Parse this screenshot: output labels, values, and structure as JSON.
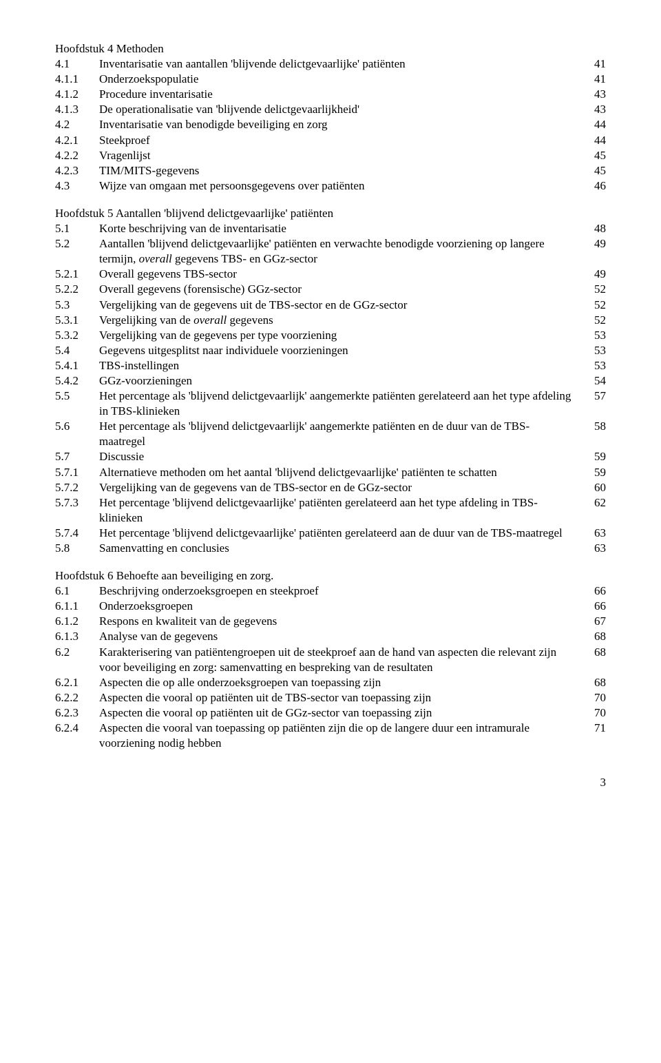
{
  "chapter4": {
    "title": "Hoofdstuk 4 Methoden",
    "entries": [
      {
        "n": "4.1",
        "t": "Inventarisatie van aantallen 'blijvende delictgevaarlijke' patiënten",
        "p": "41"
      },
      {
        "n": "4.1.1",
        "t": "Onderzoekspopulatie",
        "p": "41"
      },
      {
        "n": "4.1.2",
        "t": "Procedure inventarisatie",
        "p": "43"
      },
      {
        "n": "4.1.3",
        "t": "De operationalisatie van 'blijvende delictgevaarlijkheid'",
        "p": "43"
      },
      {
        "n": "4.2",
        "t": "Inventarisatie van benodigde beveiliging en zorg",
        "p": "44"
      },
      {
        "n": "4.2.1",
        "t": "Steekproef",
        "p": "44"
      },
      {
        "n": "4.2.2",
        "t": "Vragenlijst",
        "p": "45"
      },
      {
        "n": "4.2.3",
        "t": "TIM/MITS-gegevens",
        "p": "45"
      },
      {
        "n": "4.3",
        "t": "Wijze van omgaan met persoonsgegevens over patiënten",
        "p": "46"
      }
    ]
  },
  "chapter5": {
    "title": "Hoofdstuk 5 Aantallen 'blijvend delictgevaarlijke' patiënten",
    "e51": {
      "n": "5.1",
      "t": "Korte beschrijving van de inventarisatie",
      "p": "48"
    },
    "e52": {
      "n": "5.2",
      "t_a": "Aantallen 'blijvend delictgevaarlijke' patiënten en verwachte benodigde voorziening op langere termijn, ",
      "t_i": "overall",
      "t_b": " gegevens TBS- en GGz-sector",
      "p": "49"
    },
    "e521": {
      "n": "5.2.1",
      "t": "Overall gegevens TBS-sector",
      "p": "49"
    },
    "e522": {
      "n": "5.2.2",
      "t": "Overall gegevens (forensische) GGz-sector",
      "p": "52"
    },
    "e53": {
      "n": "5.3",
      "t": "Vergelijking van de gegevens uit de TBS-sector en de GGz-sector",
      "p": "52"
    },
    "e531": {
      "n": "5.3.1",
      "t_a": "Vergelijking van de ",
      "t_i": "overall",
      "t_b": " gegevens",
      "p": "52"
    },
    "e532": {
      "n": "5.3.2",
      "t": "Vergelijking van de gegevens per type voorziening",
      "p": "53"
    },
    "e54": {
      "n": "5.4",
      "t": "Gegevens uitgesplitst naar individuele voorzieningen",
      "p": "53"
    },
    "e541": {
      "n": "5.4.1",
      "t": "TBS-instellingen",
      "p": "53"
    },
    "e542": {
      "n": "5.4.2",
      "t": "GGz-voorzieningen",
      "p": "54"
    },
    "e55": {
      "n": "5.5",
      "t": "Het percentage als 'blijvend delictgevaarlijk' aangemerkte patiënten gerelateerd aan het type afdeling in TBS-klinieken",
      "p": "57"
    },
    "e56": {
      "n": "5.6",
      "t": "Het percentage als 'blijvend delictgevaarlijk' aangemerkte patiënten en de duur van de TBS-maatregel",
      "p": "58"
    },
    "e57": {
      "n": "5.7",
      "t": "Discussie",
      "p": "59"
    },
    "e571": {
      "n": "5.7.1",
      "t": "Alternatieve methoden om het aantal 'blijvend delictgevaarlijke' patiënten te schatten",
      "p": "59"
    },
    "e572": {
      "n": "5.7.2",
      "t": "Vergelijking van de gegevens van de TBS-sector en de GGz-sector",
      "p": "60"
    },
    "e573": {
      "n": "5.7.3",
      "t": "Het percentage 'blijvend delictgevaarlijke' patiënten gerelateerd aan het type afdeling in TBS-klinieken",
      "p": "62"
    },
    "e574": {
      "n": "5.7.4",
      "t": "Het percentage 'blijvend delictgevaarlijke' patiënten gerelateerd aan de duur van de TBS-maatregel",
      "p": "63"
    },
    "e58": {
      "n": "5.8",
      "t": "Samenvatting en conclusies",
      "p": "63"
    }
  },
  "chapter6": {
    "title": "Hoofdstuk 6 Behoefte aan beveiliging en zorg.",
    "entries": [
      {
        "n": "6.1",
        "t": "Beschrijving onderzoeksgroepen en steekproef",
        "p": "66"
      },
      {
        "n": "6.1.1",
        "t": "Onderzoeksgroepen",
        "p": "66"
      },
      {
        "n": "6.1.2",
        "t": "Respons en kwaliteit van de gegevens",
        "p": "67"
      },
      {
        "n": "6.1.3",
        "t": "Analyse van de gegevens",
        "p": "68"
      },
      {
        "n": "6.2",
        "t": "Karakterisering van patiëntengroepen uit de steekproef aan de hand van aspecten die relevant zijn voor beveiliging en zorg: samenvatting en bespreking van de resultaten",
        "p": "68"
      },
      {
        "n": "6.2.1",
        "t": "Aspecten die op alle onderzoeksgroepen van toepassing zijn",
        "p": "68"
      },
      {
        "n": "6.2.2",
        "t": "Aspecten die vooral op patiënten uit de TBS-sector van toepassing zijn",
        "p": "70"
      },
      {
        "n": "6.2.3",
        "t": "Aspecten die vooral op patiënten uit de GGz-sector van toepassing zijn",
        "p": "70"
      },
      {
        "n": "6.2.4",
        "t": "Aspecten die vooral van toepassing op patiënten zijn die op de langere duur een intramurale voorziening nodig hebben",
        "p": "71"
      }
    ]
  },
  "pageNumber": "3"
}
